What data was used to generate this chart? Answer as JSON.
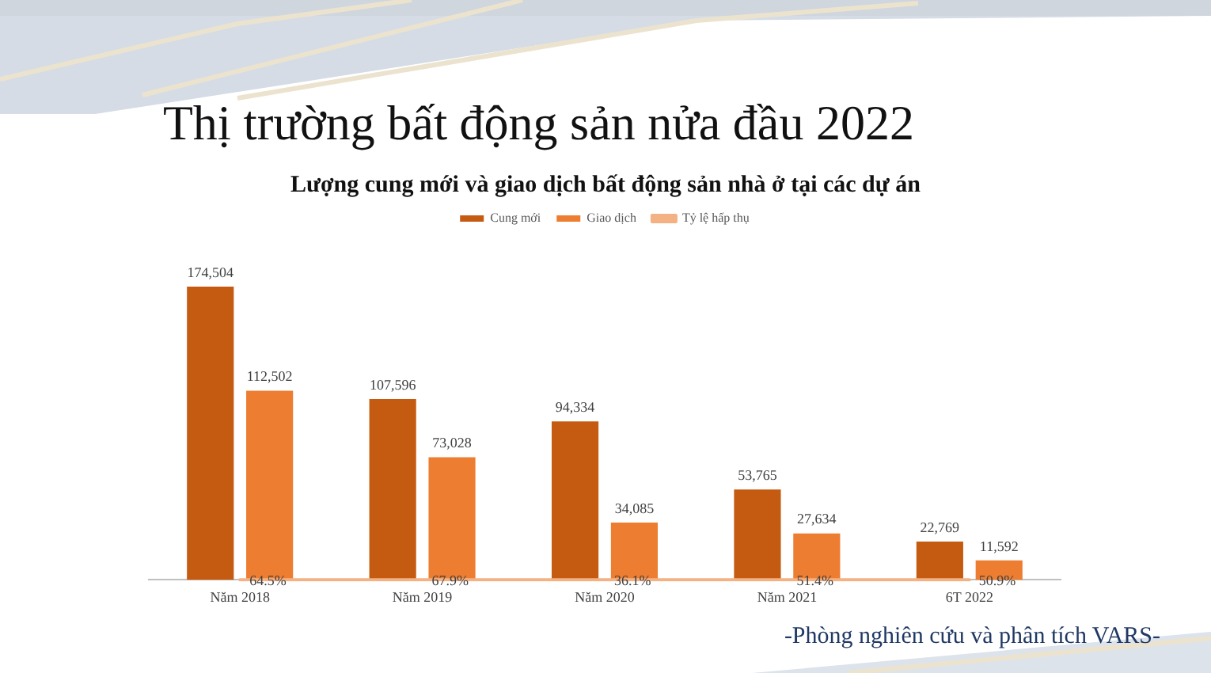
{
  "chart_data": {
    "type": "bar",
    "title": "Thị trường bất động sản nửa đầu 2022",
    "subtitle": "Lượng cung mới và giao dịch bất động sản nhà ở tại các dự án",
    "categories": [
      "Năm 2018",
      "Năm 2019",
      "Năm 2020",
      "Năm 2021",
      "6T 2022"
    ],
    "series": [
      {
        "name": "Cung mới",
        "color": "#c55a11",
        "values": [
          174504,
          107596,
          94334,
          53765,
          22769
        ],
        "value_labels": [
          "174,504",
          "107,596",
          "94,334",
          "53,765",
          "22,769"
        ]
      },
      {
        "name": "Giao dịch",
        "color": "#ed7d31",
        "values": [
          112502,
          73028,
          34085,
          27634,
          11592
        ],
        "value_labels": [
          "112,502",
          "73,028",
          "34,085",
          "27,634",
          "11,592"
        ]
      },
      {
        "name": "Tỷ lệ hấp thụ",
        "type": "line",
        "color": "#f4b183",
        "values": [
          64.5,
          67.9,
          36.1,
          51.4,
          50.9
        ],
        "value_labels": [
          "64.5%",
          "67.9%",
          "36.1%",
          "51.4%",
          "50.9%"
        ]
      }
    ],
    "tick_labels": "x",
    "legend": "top",
    "marker": "none",
    "annotations": [
      "-Phòng nghiên cứu và phân tích VARS-"
    ]
  }
}
